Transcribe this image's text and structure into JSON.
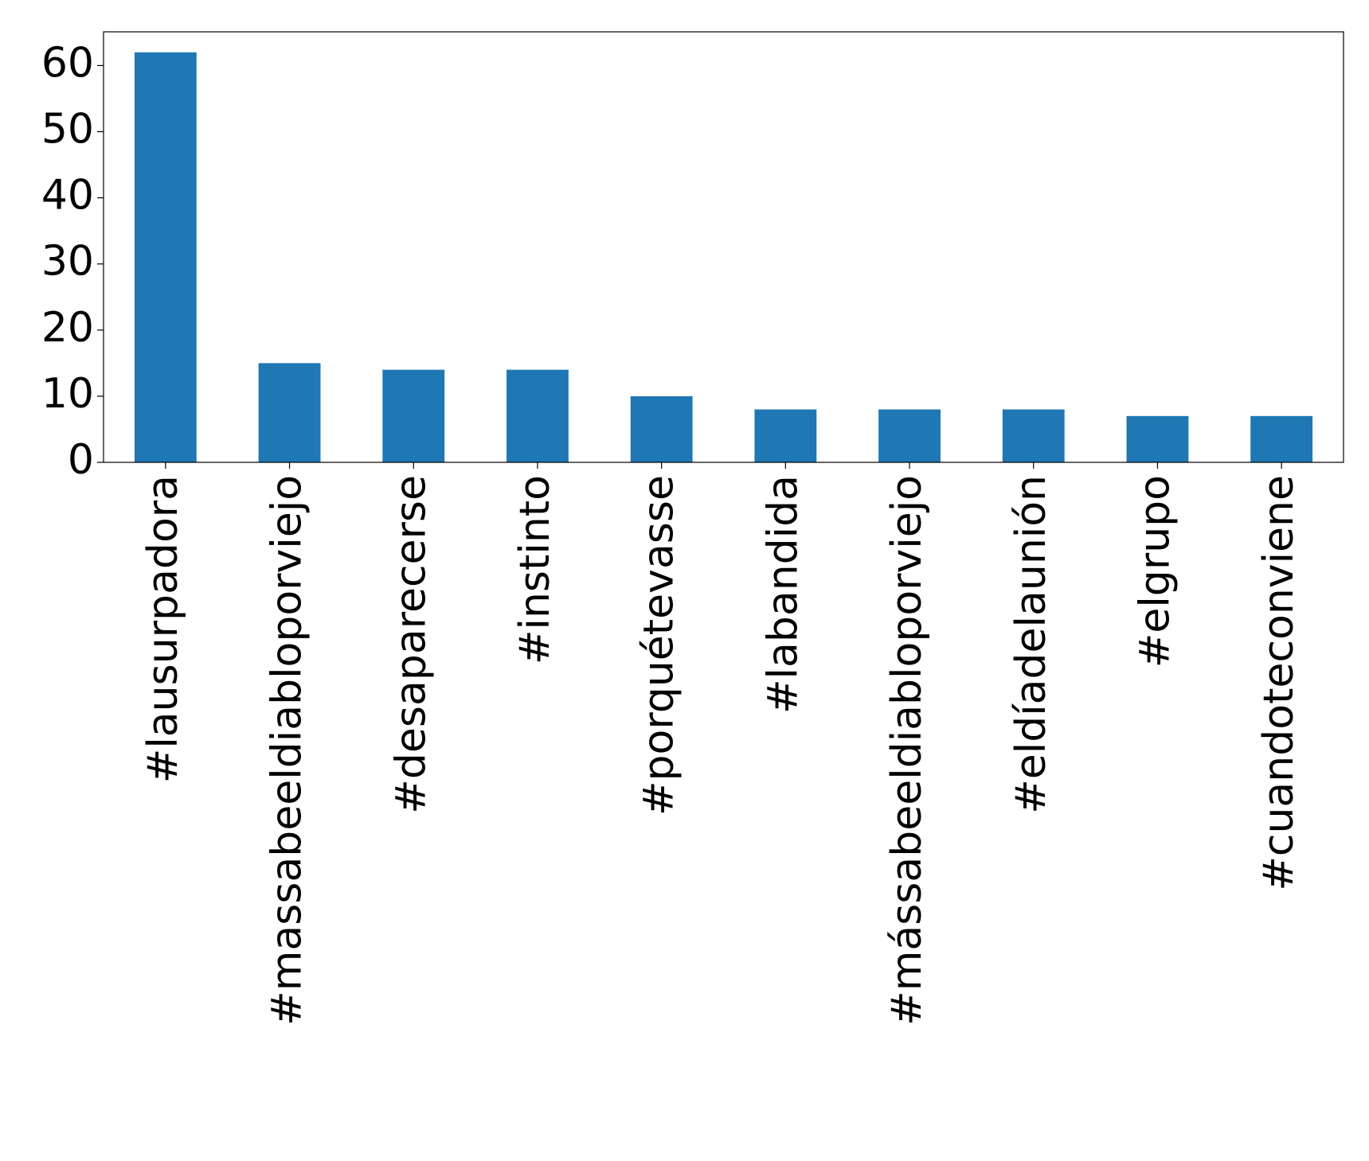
{
  "chart_data": {
    "type": "bar",
    "categories": [
      "#lausurpadora",
      "#massabeeldiabloporviejo",
      "#desaparecerse",
      "#instinto",
      "#porquétevasse",
      "#labandida",
      "#mássabeeldiabloporviejo",
      "#eldíadelaunión",
      "#elgrupo",
      "#cuandoteconviene"
    ],
    "values": [
      62,
      15,
      14,
      14,
      10,
      8,
      8,
      8,
      7,
      7
    ],
    "color": "#1f77b4",
    "ylim": [
      0,
      65.1
    ],
    "yticks": [
      0,
      10,
      20,
      30,
      40,
      50,
      60
    ],
    "grid": false
  }
}
